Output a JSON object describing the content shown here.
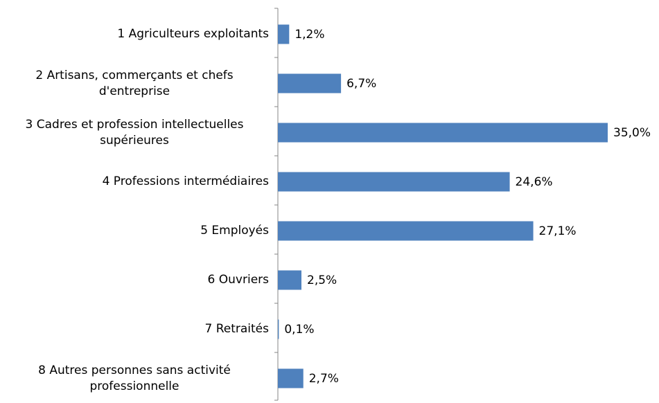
{
  "chart_data": {
    "type": "barh",
    "categories": [
      "1 Agriculteurs exploitants",
      "2 Artisans, commerçants et chefs d'entreprise",
      "3 Cadres et profession intellectuelles supérieures",
      "4 Professions intermédiaires",
      "5 Employés",
      "6 Ouvriers",
      "7 Retraités",
      "8 Autres personnes sans activité professionnelle"
    ],
    "values": [
      1.2,
      6.7,
      35.0,
      24.6,
      27.1,
      2.5,
      0.1,
      2.7
    ],
    "value_labels": [
      "1,2%",
      "6,7%",
      "35,0%",
      "24,6%",
      "27,1%",
      "2,5%",
      "0,1%",
      "2,7%"
    ],
    "color": "#4f81bd"
  }
}
